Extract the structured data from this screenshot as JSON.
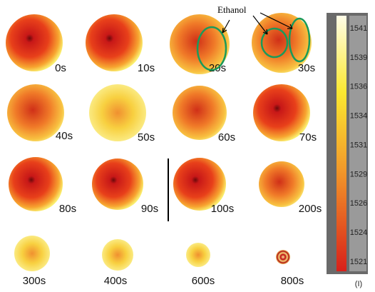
{
  "panels": [
    {
      "label": "0s"
    },
    {
      "label": "10s"
    },
    {
      "label": "20s"
    },
    {
      "label": "30s"
    },
    {
      "label": "40s"
    },
    {
      "label": "50s"
    },
    {
      "label": "60s"
    },
    {
      "label": "70s"
    },
    {
      "label": "80s"
    },
    {
      "label": "90s"
    },
    {
      "label": "100s"
    },
    {
      "label": "200s"
    },
    {
      "label": "300s"
    },
    {
      "label": "400s"
    },
    {
      "label": "600s"
    },
    {
      "label": "800s"
    }
  ],
  "annotation": "Ethanol",
  "colorbar": {
    "ticks": [
      1541,
      1539,
      1536,
      1534,
      1531,
      1529,
      1526,
      1524,
      1521
    ],
    "unit": "(I)"
  }
}
